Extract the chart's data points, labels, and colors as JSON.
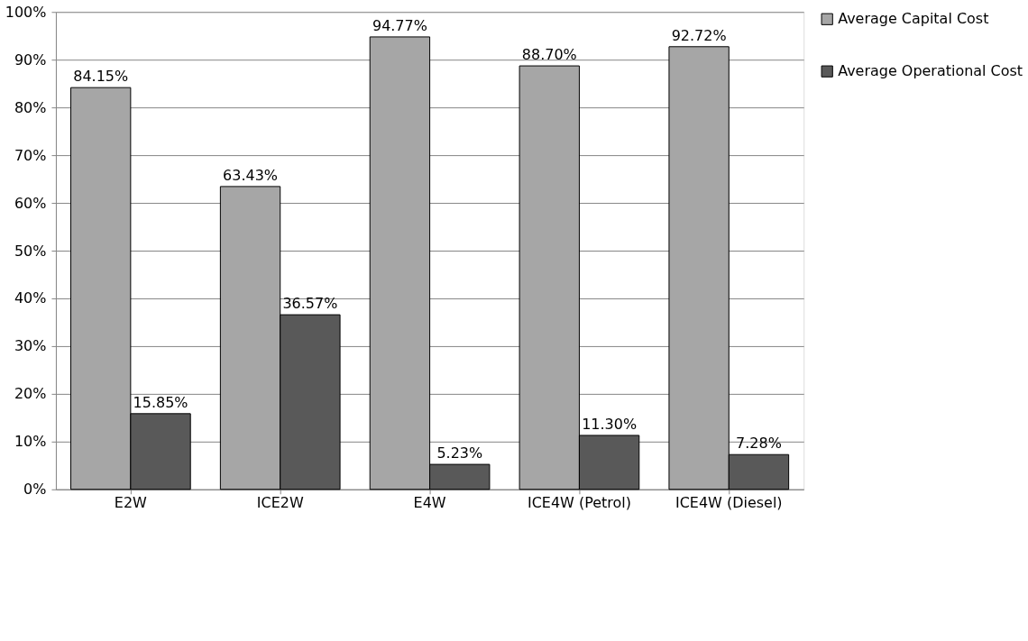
{
  "chart_data": {
    "type": "bar",
    "categories": [
      "E2W",
      "ICE2W",
      "E4W",
      "ICE4W (Petrol)",
      "ICE4W (Diesel)"
    ],
    "series": [
      {
        "name": "Average Capital Cost",
        "color": "#a6a6a6",
        "values": [
          84.15,
          63.43,
          94.77,
          88.7,
          92.72
        ],
        "value_labels": [
          "84.15%",
          "63.43%",
          "94.77%",
          "88.70%",
          "92.72%"
        ]
      },
      {
        "name": "Average Operational Cost",
        "color": "#595959",
        "values": [
          15.85,
          36.57,
          5.23,
          11.3,
          7.28
        ],
        "value_labels": [
          "15.85%",
          "36.57%",
          "5.23%",
          "11.30%",
          "7.28%"
        ]
      }
    ],
    "ylim": [
      0,
      100
    ],
    "yticks": [
      {
        "value": 0,
        "label": "0%"
      },
      {
        "value": 10,
        "label": "10%"
      },
      {
        "value": 20,
        "label": "20%"
      },
      {
        "value": 30,
        "label": "30%"
      },
      {
        "value": 40,
        "label": "40%"
      },
      {
        "value": 50,
        "label": "50%"
      },
      {
        "value": 60,
        "label": "60%"
      },
      {
        "value": 70,
        "label": "70%"
      },
      {
        "value": 80,
        "label": "80%"
      },
      {
        "value": 90,
        "label": "90%"
      },
      {
        "value": 100,
        "label": "100%"
      }
    ],
    "grid": "y",
    "legend": "right"
  }
}
